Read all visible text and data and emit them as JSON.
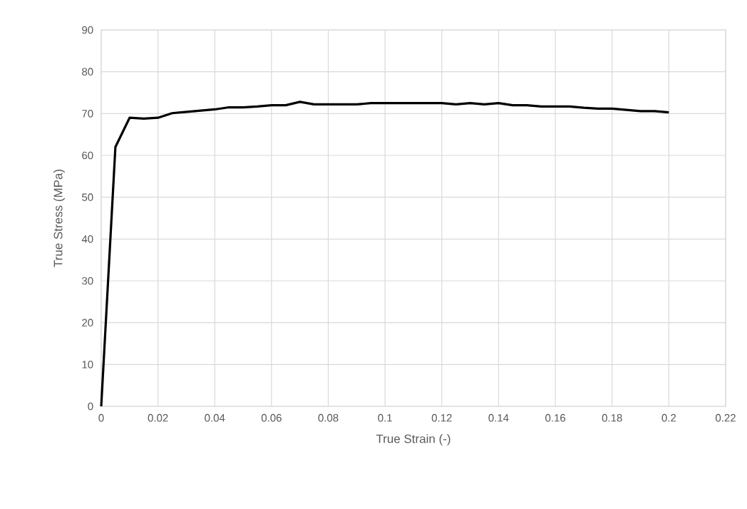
{
  "chart_data": {
    "type": "line",
    "xlabel": "True Strain (-)",
    "ylabel": "True Stress (MPa)",
    "x": [
      0,
      0.005,
      0.01,
      0.015,
      0.02,
      0.025,
      0.03,
      0.035,
      0.04,
      0.045,
      0.05,
      0.055,
      0.06,
      0.065,
      0.07,
      0.075,
      0.08,
      0.085,
      0.09,
      0.095,
      0.1,
      0.105,
      0.11,
      0.115,
      0.12,
      0.125,
      0.13,
      0.135,
      0.14,
      0.145,
      0.15,
      0.155,
      0.16,
      0.165,
      0.17,
      0.175,
      0.18,
      0.185,
      0.19,
      0.195,
      0.2
    ],
    "series": [
      {
        "color": "#000000",
        "values": [
          0,
          62,
          69,
          68.8,
          69,
          70.1,
          70.4,
          70.7,
          71,
          71.5,
          71.5,
          71.7,
          72,
          72,
          72.8,
          72.2,
          72.2,
          72.2,
          72.2,
          72.5,
          72.5,
          72.5,
          72.5,
          72.5,
          72.5,
          72.2,
          72.5,
          72.2,
          72.5,
          72,
          72,
          71.7,
          71.7,
          71.7,
          71.4,
          71.2,
          71.2,
          70.9,
          70.6,
          70.6,
          70.3
        ]
      }
    ],
    "xlim": [
      0,
      0.22
    ],
    "ylim": [
      0,
      90
    ],
    "xticks": [
      0,
      0.02,
      0.04,
      0.06,
      0.08,
      0.1,
      0.12,
      0.14,
      0.16,
      0.18,
      0.2,
      0.22
    ],
    "yticks": [
      0,
      10,
      20,
      30,
      40,
      50,
      60,
      70,
      80,
      90
    ],
    "grid": true,
    "marker": "none",
    "line_style": "solid"
  }
}
